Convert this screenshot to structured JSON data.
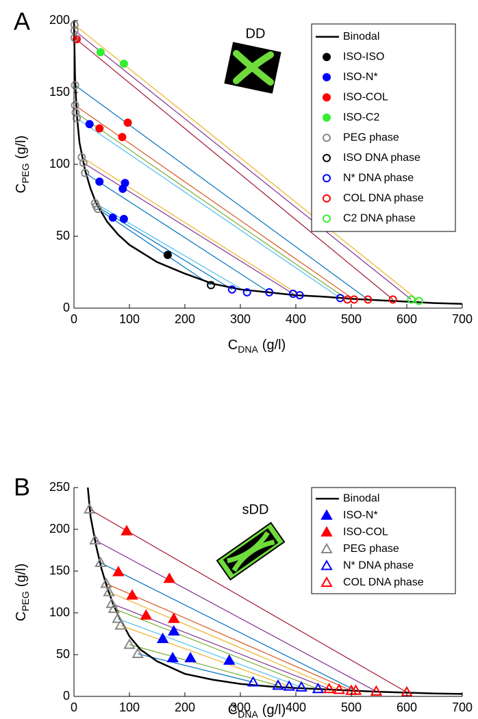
{
  "chart_data": [
    {
      "type": "scatter",
      "panel_label": "A",
      "title": "DD",
      "xlabel": {
        "main": "C",
        "sub": "DNA",
        "unit": "(g/l)"
      },
      "ylabel": {
        "main": "C",
        "sub": "PEG",
        "unit": "(g/l)"
      },
      "xlim": [
        0,
        700
      ],
      "ylim": [
        0,
        200
      ],
      "xticks": [
        0,
        100,
        200,
        300,
        400,
        500,
        600,
        700
      ],
      "yticks": [
        0,
        50,
        100,
        150,
        200
      ],
      "legend": "upper right",
      "marker": "circle",
      "series": [
        {
          "name": "Binodal",
          "type": "line",
          "color": "#000000",
          "x": [
            0,
            1,
            2,
            5,
            10,
            20,
            30,
            40,
            60,
            80,
            100,
            150,
            200,
            250,
            300,
            350,
            400,
            450,
            500,
            550,
            600,
            650,
            700
          ],
          "y": [
            200,
            180,
            160,
            135,
            115,
            96,
            83,
            73,
            60,
            51,
            44,
            32,
            24,
            17,
            13,
            11,
            9,
            8,
            6.5,
            5.5,
            4.5,
            3.5,
            3
          ]
        },
        {
          "name": "ISO-ISO",
          "color": "#000000",
          "filled": true,
          "x": [
            169
          ],
          "y": [
            37
          ]
        },
        {
          "name": "ISO-N*",
          "color": "#0000ff",
          "filled": true,
          "x": [
            28,
            46,
            70,
            90,
            88,
            92
          ],
          "y": [
            128,
            88,
            63,
            62,
            83,
            87
          ]
        },
        {
          "name": "ISO-COL",
          "color": "#ff0000",
          "filled": true,
          "x": [
            5,
            46,
            87,
            97
          ],
          "y": [
            187,
            125,
            119,
            129
          ]
        },
        {
          "name": "ISO-C2",
          "color": "#33ee33",
          "filled": true,
          "x": [
            48,
            90
          ],
          "y": [
            178,
            170
          ]
        },
        {
          "name": "PEG phase",
          "color": "#888888",
          "filled": false,
          "x": [
            1,
            1,
            1,
            2,
            2,
            3,
            5,
            14,
            17,
            20,
            38,
            40,
            43
          ],
          "y": [
            197,
            193,
            188,
            155,
            141,
            136,
            132,
            105,
            101,
            94,
            73,
            71,
            69
          ]
        },
        {
          "name": "ISO DNA phase",
          "color": "#000000",
          "filled": false,
          "x": [
            247
          ],
          "y": [
            16
          ]
        },
        {
          "name": "N* DNA phase",
          "color": "#0000ff",
          "filled": false,
          "x": [
            285,
            312,
            352,
            395,
            407,
            480
          ],
          "y": [
            13,
            11,
            11,
            10,
            9,
            7
          ]
        },
        {
          "name": "COL DNA phase",
          "color": "#ff0000",
          "filled": false,
          "x": [
            493,
            505,
            530,
            575
          ],
          "y": [
            6,
            6,
            6,
            6
          ]
        },
        {
          "name": "C2 DNA phase",
          "color": "#33ee33",
          "filled": false,
          "x": [
            608,
            622
          ],
          "y": [
            6,
            5
          ]
        }
      ],
      "tie_lines": [
        {
          "color": "#EDB120",
          "x": [
            1,
            622
          ],
          "y": [
            197,
            5
          ]
        },
        {
          "color": "#7E2F8E",
          "x": [
            1,
            608
          ],
          "y": [
            193,
            6
          ]
        },
        {
          "color": "#A2142F",
          "x": [
            1,
            575
          ],
          "y": [
            188,
            6
          ]
        },
        {
          "color": "#0072BD",
          "x": [
            2,
            530
          ],
          "y": [
            155,
            6
          ]
        },
        {
          "color": "#D95319",
          "x": [
            2,
            505
          ],
          "y": [
            141,
            6
          ]
        },
        {
          "color": "#77AC30",
          "x": [
            3,
            493
          ],
          "y": [
            136,
            6
          ]
        },
        {
          "color": "#4DBEEE",
          "x": [
            5,
            480
          ],
          "y": [
            132,
            7
          ]
        },
        {
          "color": "#EDB120",
          "x": [
            14,
            407
          ],
          "y": [
            105,
            9
          ]
        },
        {
          "color": "#7E2F8E",
          "x": [
            17,
            395
          ],
          "y": [
            101,
            10
          ]
        },
        {
          "color": "#0072BD",
          "x": [
            20,
            352
          ],
          "y": [
            94,
            11
          ]
        },
        {
          "color": "#4DBEEE",
          "x": [
            38,
            312
          ],
          "y": [
            73,
            11
          ]
        },
        {
          "color": "#0072BD",
          "x": [
            40,
            285
          ],
          "y": [
            71,
            13
          ]
        },
        {
          "color": "#0072BD",
          "x": [
            43,
            247
          ],
          "y": [
            69,
            16
          ]
        }
      ]
    },
    {
      "type": "scatter",
      "panel_label": "B",
      "title": "sDD",
      "xlabel": {
        "main": "C",
        "sub": "DNA",
        "unit": "(g/l)"
      },
      "ylabel": {
        "main": "C",
        "sub": "PEG",
        "unit": "(g/l)"
      },
      "xlim": [
        0,
        700
      ],
      "ylim": [
        0,
        250
      ],
      "xticks": [
        0,
        100,
        200,
        300,
        400,
        500,
        600,
        700
      ],
      "yticks": [
        0,
        50,
        100,
        150,
        200,
        250
      ],
      "legend": "upper right",
      "marker": "triangle",
      "series": [
        {
          "name": "Binodal",
          "type": "line",
          "color": "#000000",
          "x": [
            25,
            30,
            40,
            50,
            60,
            70,
            80,
            100,
            120,
            150,
            200,
            250,
            300,
            350,
            400,
            450,
            500,
            550,
            600,
            650,
            700
          ],
          "y": [
            250,
            215,
            180,
            152,
            130,
            112,
            97,
            72,
            56,
            42,
            27,
            20,
            15,
            12,
            10,
            8.5,
            7,
            5.5,
            4.5,
            3.5,
            3
          ]
        },
        {
          "name": "ISO-N*",
          "color": "#0000ff",
          "filled": true,
          "x": [
            160,
            178,
            180,
            210,
            280
          ],
          "y": [
            69,
            46,
            78,
            46,
            43
          ]
        },
        {
          "name": "ISO-COL",
          "color": "#ff0000",
          "filled": true,
          "x": [
            80,
            95,
            105,
            130,
            172,
            180
          ],
          "y": [
            149,
            198,
            121,
            97,
            141,
            93
          ]
        },
        {
          "name": "PEG phase",
          "color": "#888888",
          "filled": false,
          "x": [
            28,
            38,
            48,
            58,
            63,
            68,
            72,
            79,
            84,
            100,
            115
          ],
          "y": [
            224,
            187,
            160,
            135,
            125,
            111,
            105,
            93,
            85,
            62,
            51
          ]
        },
        {
          "name": "N* DNA phase",
          "color": "#0000ff",
          "filled": false,
          "x": [
            323,
            368,
            388,
            410,
            440
          ],
          "y": [
            17,
            13,
            12,
            11,
            9
          ]
        },
        {
          "name": "COL DNA phase",
          "color": "#ff0000",
          "filled": false,
          "x": [
            460,
            478,
            500,
            508,
            545,
            600
          ],
          "y": [
            9,
            8,
            7,
            7,
            6,
            5
          ]
        }
      ],
      "tie_lines": [
        {
          "color": "#A2142F",
          "x": [
            28,
            600
          ],
          "y": [
            224,
            5
          ]
        },
        {
          "color": "#7E2F8E",
          "x": [
            38,
            545
          ],
          "y": [
            187,
            6
          ]
        },
        {
          "color": "#0072BD",
          "x": [
            48,
            508
          ],
          "y": [
            160,
            7
          ]
        },
        {
          "color": "#D95319",
          "x": [
            58,
            500
          ],
          "y": [
            135,
            7
          ]
        },
        {
          "color": "#EDB120",
          "x": [
            63,
            478
          ],
          "y": [
            125,
            8
          ]
        },
        {
          "color": "#7E2F8E",
          "x": [
            68,
            460
          ],
          "y": [
            111,
            9
          ]
        },
        {
          "color": "#77AC30",
          "x": [
            72,
            440
          ],
          "y": [
            105,
            9
          ]
        },
        {
          "color": "#4DBEEE",
          "x": [
            79,
            410
          ],
          "y": [
            93,
            11
          ]
        },
        {
          "color": "#EDB120",
          "x": [
            84,
            388
          ],
          "y": [
            85,
            12
          ]
        },
        {
          "color": "#77AC30",
          "x": [
            100,
            368
          ],
          "y": [
            62,
            13
          ]
        },
        {
          "color": "#0072BD",
          "x": [
            115,
            323
          ],
          "y": [
            51,
            17
          ]
        }
      ]
    }
  ]
}
